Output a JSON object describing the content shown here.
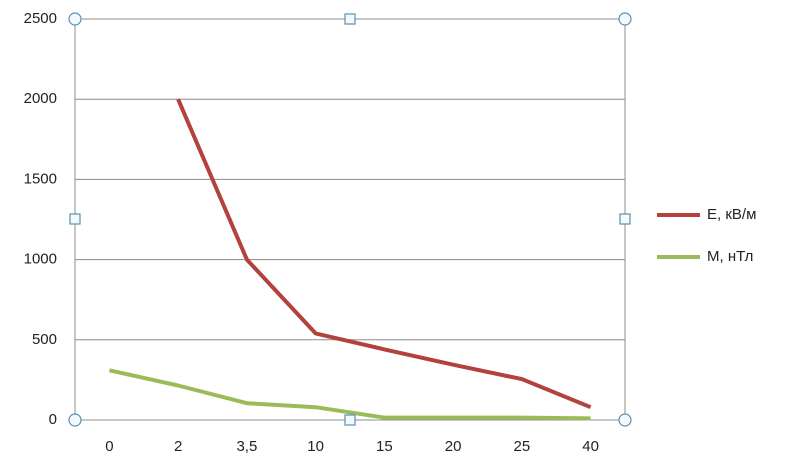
{
  "chart_data": {
    "type": "line",
    "categories": [
      "0",
      "2",
      "3,5",
      "10",
      "15",
      "20",
      "25",
      "40"
    ],
    "series": [
      {
        "name": "E, кВ/м",
        "color": "#b3413d",
        "values": [
          null,
          2000,
          1000,
          540,
          440,
          345,
          255,
          80
        ]
      },
      {
        "name": "M, нТл",
        "color": "#9bbb59",
        "values": [
          310,
          215,
          105,
          80,
          15,
          15,
          15,
          10
        ]
      }
    ],
    "ylim": [
      0,
      2500
    ],
    "yticks": [
      0,
      500,
      1000,
      1500,
      2000,
      2500
    ],
    "grid": true,
    "legend": "right"
  }
}
